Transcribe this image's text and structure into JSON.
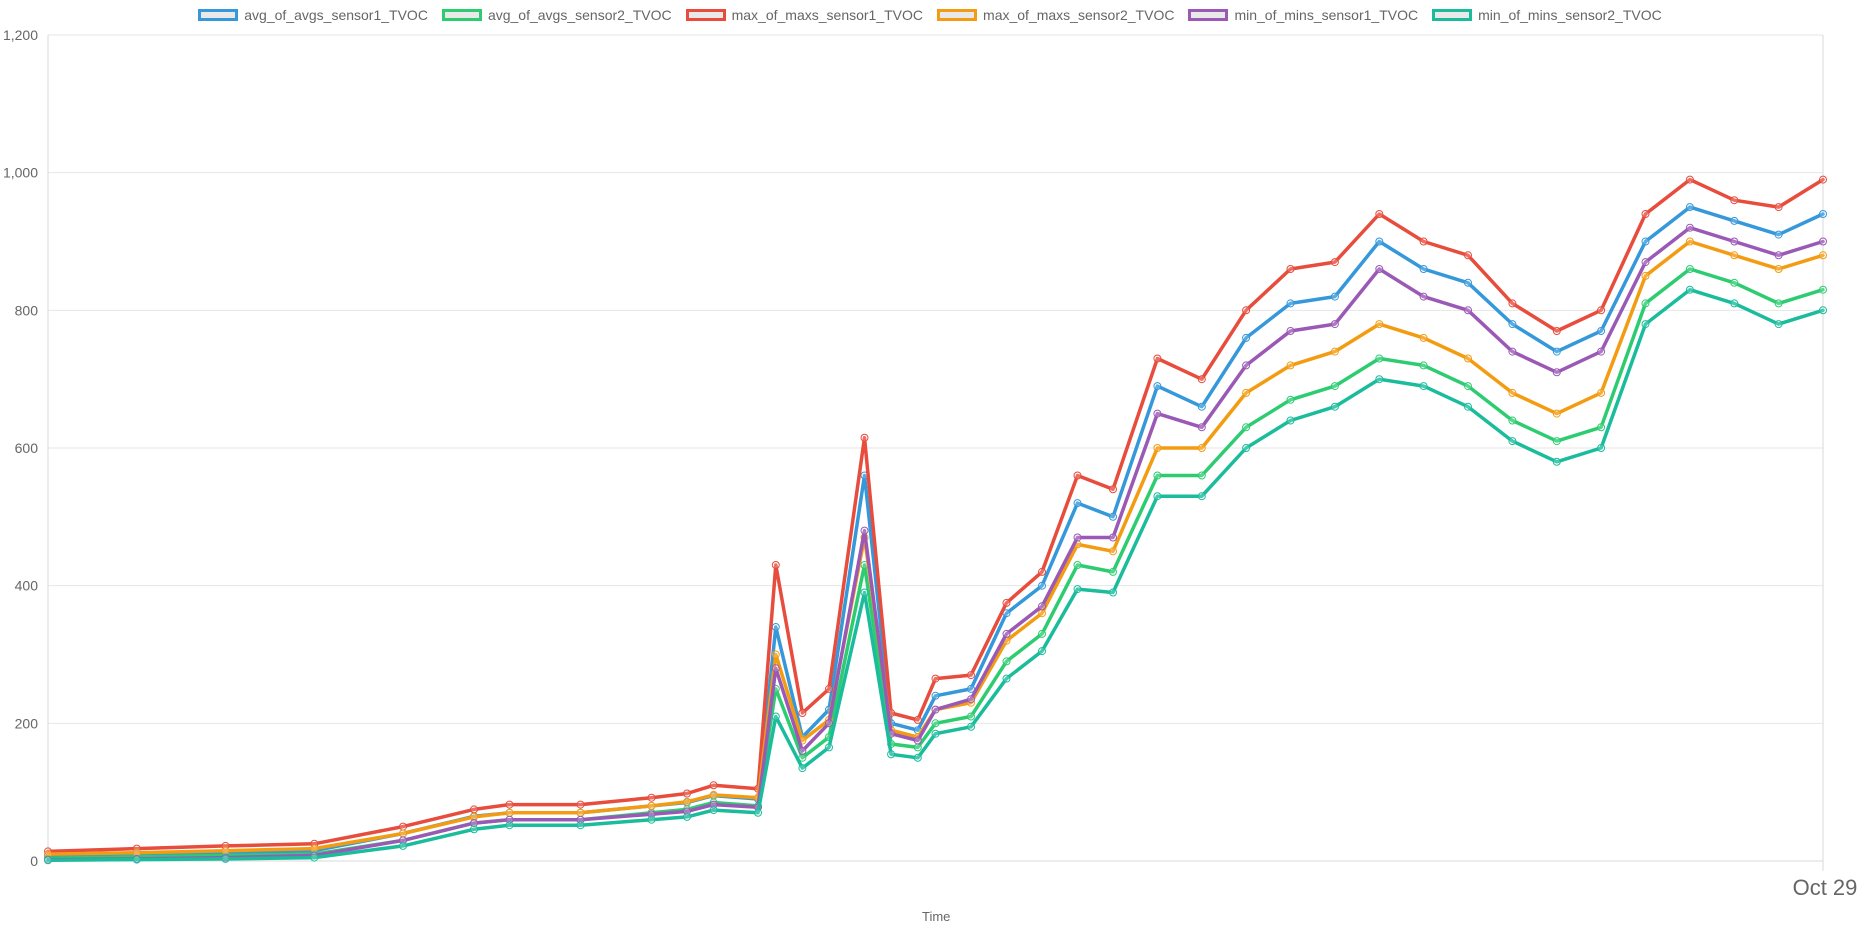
{
  "chart_data": {
    "type": "line",
    "xlabel": "Time",
    "ylabel": "",
    "x_tick_labels": [
      "Oct 29"
    ],
    "y_ticks": [
      0,
      200,
      400,
      600,
      800,
      1000,
      1200
    ],
    "y_tick_labels": [
      "0",
      "200",
      "400",
      "600",
      "800",
      "1,000",
      "1,200"
    ],
    "ylim": [
      0,
      1200
    ],
    "grid": true,
    "legend_position": "top",
    "x_sample_index": [
      0,
      10,
      20,
      30,
      40,
      48,
      52,
      60,
      68,
      72,
      75,
      80,
      82,
      85,
      88,
      92,
      95,
      98,
      100,
      104,
      108,
      112,
      116,
      120,
      125,
      130,
      135,
      140,
      145,
      150,
      155,
      160,
      165,
      170,
      175,
      180,
      185,
      190,
      195,
      200
    ],
    "series": [
      {
        "name": "avg_of_avgs_sensor1_TVOC",
        "color": "#3498db",
        "values": [
          8,
          10,
          12,
          15,
          40,
          65,
          70,
          70,
          80,
          85,
          95,
          90,
          340,
          180,
          220,
          560,
          200,
          190,
          240,
          250,
          360,
          400,
          520,
          500,
          690,
          660,
          760,
          810,
          820,
          900,
          860,
          840,
          780,
          740,
          770,
          900,
          950,
          930,
          910,
          940
        ]
      },
      {
        "name": "avg_of_avgs_sensor2_TVOC",
        "color": "#2ecc71",
        "values": [
          4,
          6,
          8,
          10,
          30,
          55,
          60,
          60,
          70,
          75,
          85,
          80,
          250,
          150,
          180,
          430,
          170,
          165,
          200,
          210,
          290,
          330,
          430,
          420,
          560,
          560,
          630,
          670,
          690,
          730,
          720,
          690,
          640,
          610,
          630,
          810,
          860,
          840,
          810,
          830
        ]
      },
      {
        "name": "max_of_maxs_sensor1_TVOC",
        "color": "#e74c3c",
        "values": [
          14,
          18,
          22,
          25,
          50,
          75,
          82,
          82,
          92,
          98,
          110,
          105,
          430,
          215,
          250,
          615,
          215,
          205,
          265,
          270,
          375,
          420,
          560,
          540,
          730,
          700,
          800,
          860,
          870,
          940,
          900,
          880,
          810,
          770,
          800,
          940,
          990,
          960,
          950,
          990
        ]
      },
      {
        "name": "max_of_maxs_sensor2_TVOC",
        "color": "#f39c12",
        "values": [
          10,
          12,
          15,
          18,
          40,
          64,
          70,
          70,
          80,
          86,
          96,
          92,
          300,
          175,
          205,
          470,
          190,
          180,
          220,
          230,
          320,
          360,
          460,
          450,
          600,
          600,
          680,
          720,
          740,
          780,
          760,
          730,
          680,
          650,
          680,
          850,
          900,
          880,
          860,
          880
        ]
      },
      {
        "name": "min_of_mins_sensor1_TVOC",
        "color": "#9b59b6",
        "values": [
          2,
          3,
          5,
          8,
          30,
          55,
          60,
          60,
          68,
          72,
          82,
          78,
          280,
          160,
          200,
          480,
          185,
          175,
          220,
          235,
          330,
          370,
          470,
          470,
          650,
          630,
          720,
          770,
          780,
          860,
          820,
          800,
          740,
          710,
          740,
          870,
          920,
          900,
          880,
          900
        ]
      },
      {
        "name": "min_of_mins_sensor2_TVOC",
        "color": "#1abc9c",
        "values": [
          1,
          2,
          3,
          5,
          22,
          46,
          52,
          52,
          60,
          64,
          74,
          70,
          210,
          135,
          165,
          390,
          155,
          150,
          185,
          195,
          265,
          305,
          395,
          390,
          530,
          530,
          600,
          640,
          660,
          700,
          690,
          660,
          610,
          580,
          600,
          780,
          830,
          810,
          780,
          800
        ]
      }
    ]
  }
}
